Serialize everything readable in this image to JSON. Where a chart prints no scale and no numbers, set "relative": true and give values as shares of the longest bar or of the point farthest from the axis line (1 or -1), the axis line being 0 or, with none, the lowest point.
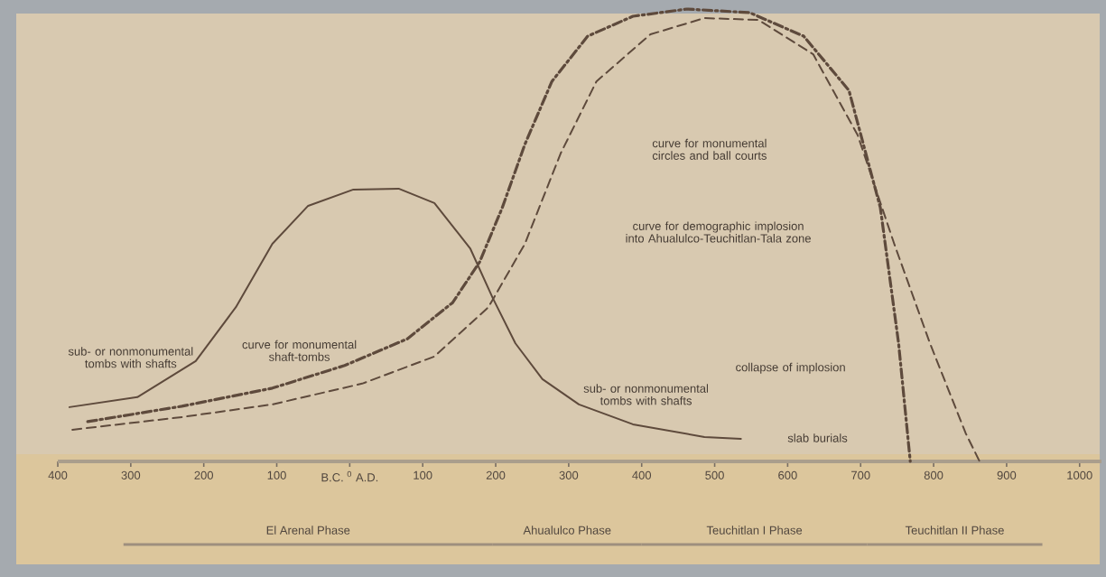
{
  "chart_data": {
    "type": "line",
    "relative": true,
    "xlim": [
      -400,
      1030
    ],
    "xticks": [
      {
        "value": -400,
        "label": "400"
      },
      {
        "value": -300,
        "label": "300"
      },
      {
        "value": -200,
        "label": "200"
      },
      {
        "value": -100,
        "label": "100"
      },
      {
        "value": 0,
        "label": "B.C. $^{0}$ A.D."
      },
      100,
      200,
      300,
      400,
      500,
      600,
      700,
      800,
      900,
      1000
    ],
    "series": [
      {
        "color": "#5e4a3c",
        "line_style": "solid",
        "x": [
          -384,
          -291,
          -211,
          -156,
          -106,
          -57,
          5,
          67,
          116,
          165,
          196,
          227,
          264,
          314,
          388,
          486,
          536
        ],
        "values": [
          0.12,
          0.142,
          0.222,
          0.341,
          0.481,
          0.565,
          0.601,
          0.603,
          0.571,
          0.471,
          0.361,
          0.261,
          0.182,
          0.126,
          0.082,
          0.054,
          0.05
        ]
      },
      {
        "color": "#5e4a3c",
        "line_style": "dashdot",
        "x": [
          -359,
          -230,
          -106,
          -7,
          79,
          141,
          178,
          209,
          240,
          277,
          326,
          388,
          462,
          548,
          622,
          684,
          727,
          752,
          768
        ],
        "values": [
          0.088,
          0.122,
          0.162,
          0.212,
          0.271,
          0.351,
          0.441,
          0.561,
          0.701,
          0.84,
          0.94,
          0.984,
          1.0,
          0.992,
          0.94,
          0.82,
          0.561,
          0.261,
          0
        ]
      },
      {
        "color": "#5e4a3c",
        "line_style": "dashed",
        "x": [
          -380,
          -230,
          -106,
          17,
          116,
          190,
          240,
          289,
          338,
          412,
          486,
          560,
          635,
          696,
          746,
          795,
          844,
          863
        ],
        "values": [
          0.07,
          0.098,
          0.126,
          0.172,
          0.232,
          0.341,
          0.481,
          0.681,
          0.84,
          0.944,
          0.98,
          0.976,
          0.9,
          0.721,
          0.481,
          0.261,
          0.062,
          0
        ]
      }
    ],
    "annotations": [
      "sub- or nonmonumental tombs with shafts",
      "curve for monumental shaft-tombs",
      "curve for demographic implosion into Ahualulco-Teuchitlan-Tala zone",
      "curve for monumental circles and ball courts",
      "sub- or nonmonumental tombs with shafts",
      "slab burials",
      "collapse of implosion",
      "El Arenal Phase",
      "Ahualulco Phase",
      "Teuchitlan I Phase",
      "Teuchitlan II Phase"
    ]
  }
}
